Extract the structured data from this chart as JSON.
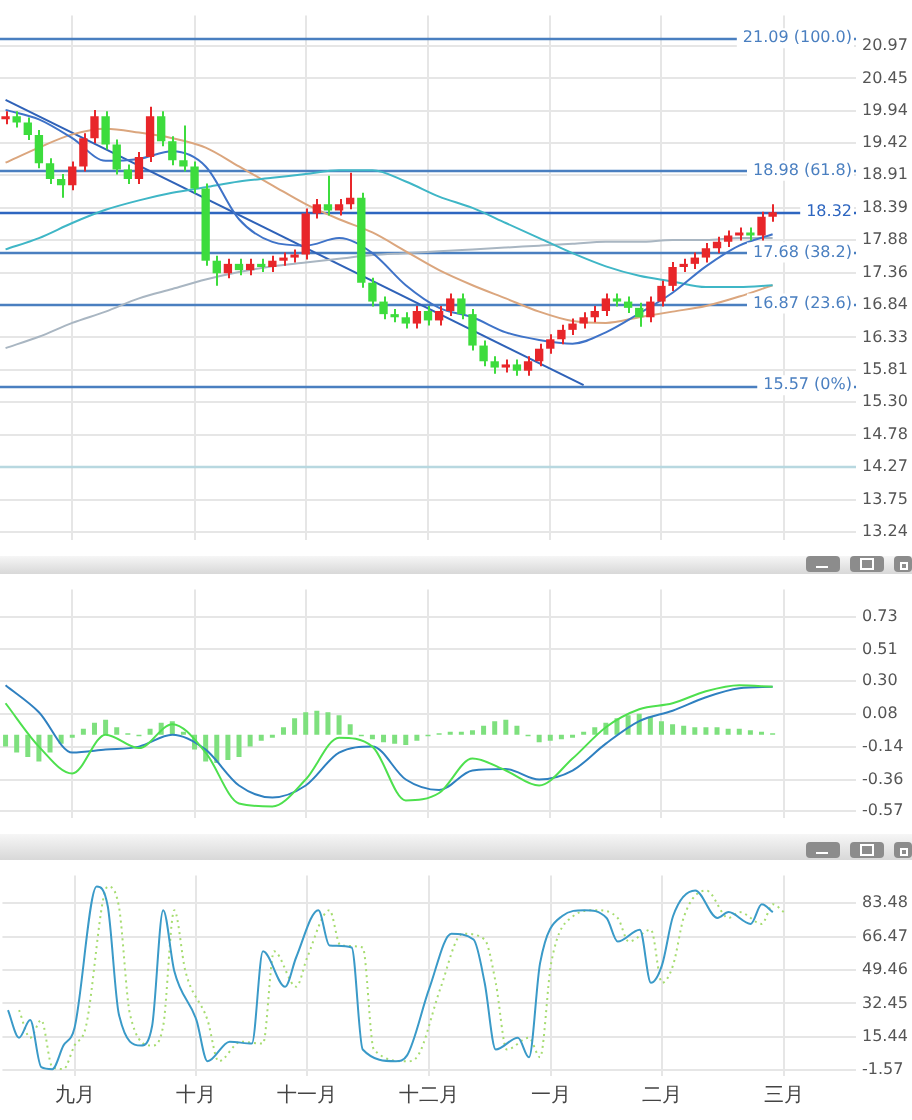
{
  "chart_data": [
    {
      "type": "candlestick",
      "categories": [
        null,
        null,
        null,
        null,
        null,
        null,
        null,
        null,
        null,
        null,
        null,
        null,
        null,
        null,
        null,
        null,
        null,
        null,
        null,
        null,
        null,
        null,
        null,
        null,
        null,
        null,
        null,
        null,
        null,
        null,
        null,
        null,
        null,
        null,
        null,
        null,
        null,
        null,
        null,
        null,
        null,
        null,
        null,
        null,
        null,
        null,
        null,
        null,
        null,
        null,
        null,
        null,
        null,
        null,
        null,
        null,
        null,
        null,
        null,
        null,
        null,
        null,
        null,
        null,
        null,
        null,
        null,
        null,
        null,
        null,
        null,
        null,
        null,
        null,
        null,
        null,
        null
      ],
      "series": [
        {
          "ohlc": [
            [
              19.8,
              19.93,
              19.72,
              19.85
            ],
            [
              19.85,
              19.93,
              19.67,
              19.75
            ],
            [
              19.75,
              19.83,
              19.47,
              19.55
            ],
            [
              19.55,
              19.63,
              19.02,
              19.1
            ],
            [
              19.1,
              19.18,
              18.77,
              18.85
            ],
            [
              18.85,
              18.93,
              18.55,
              18.75
            ],
            [
              18.75,
              19.13,
              18.67,
              19.05
            ],
            [
              19.05,
              19.58,
              18.97,
              19.5
            ],
            [
              19.5,
              19.95,
              19.42,
              19.85
            ],
            [
              19.85,
              19.93,
              19.32,
              19.4
            ],
            [
              19.4,
              19.48,
              18.92,
              19.0
            ],
            [
              19.0,
              19.08,
              18.77,
              18.85
            ],
            [
              18.85,
              19.28,
              18.77,
              19.2
            ],
            [
              19.2,
              20.0,
              19.12,
              19.85
            ],
            [
              19.85,
              19.93,
              19.37,
              19.45
            ],
            [
              19.45,
              19.53,
              19.07,
              19.15
            ],
            [
              19.15,
              19.7,
              18.97,
              19.05
            ],
            [
              19.05,
              19.13,
              18.62,
              18.7
            ],
            [
              18.7,
              18.78,
              17.47,
              17.55
            ],
            [
              17.55,
              17.63,
              17.15,
              17.35
            ],
            [
              17.35,
              17.58,
              17.27,
              17.5
            ],
            [
              17.5,
              17.58,
              17.32,
              17.4
            ],
            [
              17.4,
              17.58,
              17.32,
              17.5
            ],
            [
              17.5,
              17.58,
              17.37,
              17.45
            ],
            [
              17.45,
              17.63,
              17.37,
              17.55
            ],
            [
              17.55,
              17.68,
              17.47,
              17.6
            ],
            [
              17.6,
              17.73,
              17.52,
              17.65
            ],
            [
              17.65,
              18.38,
              17.57,
              18.3
            ],
            [
              18.3,
              18.53,
              18.22,
              18.45
            ],
            [
              18.45,
              18.9,
              18.27,
              18.35
            ],
            [
              18.35,
              18.53,
              18.27,
              18.45
            ],
            [
              18.45,
              18.95,
              18.37,
              18.55
            ],
            [
              18.55,
              18.63,
              17.12,
              17.2
            ],
            [
              17.2,
              17.28,
              16.82,
              16.9
            ],
            [
              16.9,
              16.98,
              16.62,
              16.7
            ],
            [
              16.7,
              16.78,
              16.57,
              16.65
            ],
            [
              16.65,
              16.73,
              16.47,
              16.55
            ],
            [
              16.55,
              16.83,
              16.47,
              16.75
            ],
            [
              16.75,
              16.83,
              16.52,
              16.6
            ],
            [
              16.6,
              16.83,
              16.52,
              16.75
            ],
            [
              16.75,
              17.03,
              16.67,
              16.95
            ],
            [
              16.95,
              17.03,
              16.62,
              16.7
            ],
            [
              16.7,
              16.78,
              16.12,
              16.2
            ],
            [
              16.2,
              16.28,
              15.87,
              15.95
            ],
            [
              15.95,
              16.03,
              15.75,
              15.85
            ],
            [
              15.85,
              15.98,
              15.77,
              15.9
            ],
            [
              15.9,
              15.98,
              15.72,
              15.8
            ],
            [
              15.8,
              16.03,
              15.72,
              15.95
            ],
            [
              15.95,
              16.23,
              15.87,
              16.15
            ],
            [
              16.15,
              16.38,
              16.07,
              16.3
            ],
            [
              16.3,
              16.53,
              16.22,
              16.45
            ],
            [
              16.45,
              16.63,
              16.37,
              16.55
            ],
            [
              16.55,
              16.73,
              16.47,
              16.65
            ],
            [
              16.65,
              16.83,
              16.57,
              16.75
            ],
            [
              16.75,
              17.03,
              16.67,
              16.95
            ],
            [
              16.95,
              17.03,
              16.82,
              16.9
            ],
            [
              16.9,
              16.98,
              16.72,
              16.8
            ],
            [
              16.8,
              16.88,
              16.5,
              16.65
            ],
            [
              16.65,
              16.98,
              16.57,
              16.9
            ],
            [
              16.9,
              17.23,
              16.82,
              17.15
            ],
            [
              17.15,
              17.53,
              17.07,
              17.45
            ],
            [
              17.45,
              17.58,
              17.37,
              17.5
            ],
            [
              17.5,
              17.68,
              17.42,
              17.6
            ],
            [
              17.6,
              17.83,
              17.52,
              17.75
            ],
            [
              17.75,
              17.93,
              17.67,
              17.85
            ],
            [
              17.85,
              18.03,
              17.77,
              17.95
            ],
            [
              17.95,
              18.08,
              17.87,
              18.0
            ],
            [
              18.0,
              18.08,
              17.87,
              17.95
            ],
            [
              17.95,
              18.33,
              17.87,
              18.25
            ],
            [
              18.25,
              18.45,
              18.17,
              18.32
            ],
            null,
            null,
            null,
            null,
            null,
            null,
            null
          ],
          "colors": [
            "#e8262a",
            "#3ddc3d",
            "#3ddc3d",
            "#3ddc3d",
            "#3ddc3d",
            "#3ddc3d",
            "#e8262a",
            "#e8262a",
            "#e8262a",
            "#3ddc3d",
            "#3ddc3d",
            "#3ddc3d",
            "#e8262a",
            "#e8262a",
            "#3ddc3d",
            "#3ddc3d",
            "#3ddc3d",
            "#3ddc3d",
            "#3ddc3d",
            "#3ddc3d",
            "#e8262a",
            "#3ddc3d",
            "#e8262a",
            "#3ddc3d",
            "#e8262a",
            "#e8262a",
            "#e8262a",
            "#e8262a",
            "#e8262a",
            "#3ddc3d",
            "#e8262a",
            "#e8262a",
            "#3ddc3d",
            "#3ddc3d",
            "#3ddc3d",
            "#3ddc3d",
            "#3ddc3d",
            "#e8262a",
            "#3ddc3d",
            "#e8262a",
            "#e8262a",
            "#3ddc3d",
            "#3ddc3d",
            "#3ddc3d",
            "#3ddc3d",
            "#e8262a",
            "#3ddc3d",
            "#e8262a",
            "#e8262a",
            "#e8262a",
            "#e8262a",
            "#e8262a",
            "#e8262a",
            "#e8262a",
            "#e8262a",
            "#3ddc3d",
            "#3ddc3d",
            "#3ddc3d",
            "#e8262a",
            "#e8262a",
            "#e8262a",
            "#e8262a",
            "#e8262a",
            "#e8262a",
            "#e8262a",
            "#e8262a",
            "#e8262a",
            "#3ddc3d",
            "#e8262a",
            "#e8262a",
            null,
            null,
            null,
            null,
            null,
            null,
            null
          ]
        },
        {
          "type": "line",
          "color": "#3f73c8",
          "values": [
            19.95,
            null,
            null,
            19.8,
            null,
            null,
            19.5,
            null,
            null,
            19.14,
            null,
            null,
            19.17,
            null,
            null,
            19.29,
            null,
            null,
            19.05,
            null,
            null,
            18.21,
            null,
            null,
            17.85,
            null,
            null,
            17.79,
            null,
            null,
            17.91,
            null,
            null,
            17.67,
            null,
            null,
            17.16,
            null,
            null,
            16.8,
            null,
            null,
            16.65,
            null,
            null,
            16.41,
            null,
            null,
            16.29,
            null,
            null,
            16.23,
            null,
            null,
            16.41,
            null,
            null,
            16.71,
            null,
            null,
            17.04,
            null,
            null,
            17.46,
            null,
            null,
            17.79,
            null,
            null,
            17.97,
            null,
            null,
            null,
            null,
            null,
            null,
            null
          ]
        },
        {
          "type": "line",
          "color": "#3fb6c6",
          "values": [
            17.73,
            null,
            null,
            17.91,
            null,
            null,
            18.15,
            null,
            null,
            18.36,
            null,
            null,
            18.51,
            null,
            null,
            18.63,
            null,
            null,
            18.72,
            null,
            null,
            18.81,
            null,
            null,
            18.87,
            null,
            null,
            18.93,
            null,
            null,
            18.99,
            null,
            null,
            18.99,
            null,
            null,
            18.81,
            null,
            null,
            18.57,
            null,
            null,
            18.39,
            null,
            null,
            18.15,
            null,
            null,
            17.91,
            null,
            null,
            17.67,
            null,
            null,
            17.46,
            null,
            null,
            17.31,
            null,
            null,
            17.22,
            null,
            null,
            17.13,
            null,
            null,
            17.13,
            null,
            null,
            17.16,
            null,
            null,
            null,
            null,
            null,
            null,
            null
          ]
        },
        {
          "type": "line",
          "color": "#dba67e",
          "values": [
            19.11,
            null,
            null,
            19.35,
            null,
            null,
            19.56,
            null,
            null,
            19.65,
            null,
            null,
            19.59,
            null,
            null,
            19.5,
            null,
            null,
            19.35,
            null,
            null,
            19.05,
            null,
            null,
            18.75,
            null,
            null,
            18.45,
            null,
            null,
            18.21,
            null,
            null,
            18.0,
            null,
            null,
            17.7,
            null,
            null,
            17.4,
            null,
            null,
            17.16,
            null,
            null,
            16.95,
            null,
            null,
            16.74,
            null,
            null,
            16.59,
            null,
            null,
            16.56,
            null,
            null,
            16.65,
            null,
            null,
            16.74,
            null,
            null,
            16.83,
            null,
            null,
            16.98,
            null,
            null,
            17.16,
            null,
            null,
            null,
            null,
            null,
            null,
            null
          ]
        },
        {
          "type": "line",
          "color": "#a9b6c2",
          "values": [
            16.16,
            null,
            null,
            16.34,
            null,
            null,
            16.56,
            null,
            null,
            16.74,
            null,
            null,
            16.95,
            null,
            null,
            17.1,
            null,
            null,
            17.25,
            null,
            null,
            17.37,
            null,
            null,
            17.46,
            null,
            null,
            17.52,
            null,
            null,
            17.58,
            null,
            null,
            17.64,
            null,
            null,
            17.67,
            null,
            null,
            17.7,
            null,
            null,
            17.73,
            null,
            null,
            17.76,
            null,
            null,
            17.79,
            null,
            null,
            17.82,
            null,
            null,
            17.85,
            null,
            null,
            17.85,
            null,
            null,
            17.88,
            null,
            null,
            17.88,
            null,
            null,
            17.91,
            null,
            null,
            17.91,
            null,
            null,
            null,
            null,
            null,
            null,
            null
          ]
        },
        {
          "type": "line",
          "color": "#2f62b8",
          "values": [
            20.11,
            null,
            null,
            null,
            null,
            null,
            null,
            null,
            null,
            null,
            null,
            null,
            null,
            null,
            null,
            null,
            null,
            null,
            null,
            null,
            null,
            null,
            null,
            null,
            null,
            null,
            null,
            null,
            null,
            null,
            null,
            null,
            null,
            null,
            null,
            null,
            null,
            null,
            null,
            null,
            null,
            null,
            null,
            null,
            null,
            null,
            null,
            null,
            null,
            null,
            null,
            null,
            15.57,
            null,
            null,
            null,
            null,
            null,
            null,
            null,
            null,
            null,
            null,
            null,
            null,
            null,
            null,
            null,
            null,
            null,
            null,
            null,
            null,
            null,
            null,
            null,
            null
          ]
        }
      ],
      "ylim": [
        13.1,
        21.45
      ],
      "yticks": [
        20.97,
        20.45,
        19.94,
        19.42,
        18.91,
        18.39,
        17.88,
        17.36,
        16.84,
        16.33,
        15.81,
        {
          "value": 15.3,
          "label": "15.30"
        },
        14.78,
        14.27,
        13.75,
        13.24
      ],
      "ref_lines": [
        {
          "axis": "y",
          "value": 21.09,
          "label": "21.09 (100.0)",
          "color": "#4a7fc0"
        },
        {
          "axis": "y",
          "value": 18.98,
          "label": "18.98 (61.8)",
          "color": "#4a7fc0"
        },
        {
          "axis": "y",
          "value": 18.32,
          "label": "18.32",
          "color": "#2e66c0"
        },
        {
          "axis": "y",
          "value": 17.68,
          "label": "17.68 (38.2)",
          "color": "#4a7fc0"
        },
        {
          "axis": "y",
          "value": 16.87,
          "label": "16.87 (23.6)",
          "color": "#4a7fc0"
        },
        {
          "axis": "y",
          "value": 15.57,
          "label": "15.57 (0%)",
          "color": "#4a7fc0"
        },
        {
          "axis": "y",
          "value": 14.29,
          "color": "#b8d8e0"
        }
      ],
      "grid": true,
      "tick_labels": "y"
    },
    {
      "type": "bar",
      "categories": [
        null,
        null,
        null,
        null,
        null,
        null,
        null,
        null,
        null,
        null,
        null,
        null,
        null,
        null,
        null,
        null,
        null,
        null,
        null,
        null,
        null,
        null,
        null,
        null,
        null,
        null,
        null,
        null,
        null,
        null,
        null,
        null,
        null,
        null,
        null,
        null,
        null,
        null,
        null,
        null,
        null,
        null,
        null,
        null,
        null,
        null,
        null,
        null,
        null,
        null,
        null,
        null,
        null,
        null,
        null,
        null,
        null,
        null,
        null,
        null,
        null,
        null,
        null,
        null,
        null,
        null,
        null,
        null,
        null,
        null,
        null,
        null,
        null,
        null,
        null,
        null,
        null
      ],
      "series": [
        {
          "color": "#7ee07e",
          "values": [
            -0.08,
            -0.12,
            -0.15,
            -0.18,
            -0.12,
            -0.06,
            -0.02,
            0.04,
            0.08,
            0.1,
            0.05,
            0.01,
            -0.01,
            0.04,
            0.08,
            0.09,
            0.02,
            -0.1,
            -0.18,
            -0.19,
            -0.17,
            -0.15,
            -0.08,
            -0.04,
            -0.02,
            0.05,
            0.11,
            0.15,
            0.16,
            0.15,
            0.13,
            0.07,
            -0.01,
            -0.03,
            -0.05,
            -0.06,
            -0.07,
            -0.04,
            -0.01,
            0.01,
            0.02,
            0.02,
            0.03,
            0.06,
            0.09,
            0.1,
            0.06,
            -0.01,
            -0.05,
            -0.04,
            -0.03,
            -0.02,
            0.02,
            0.05,
            0.08,
            0.11,
            0.13,
            0.14,
            0.12,
            0.09,
            0.07,
            0.06,
            0.05,
            0.05,
            0.05,
            0.04,
            0.04,
            0.03,
            0.02,
            0.01,
            null,
            null,
            null,
            null,
            null,
            null,
            null
          ],
          "base": [
            -0.06,
            -0.06,
            -0.06,
            -0.06,
            -0.06,
            -0.06,
            -0.06,
            -0.06,
            -0.06,
            -0.06,
            -0.06,
            -0.06,
            -0.06,
            -0.06,
            -0.06,
            -0.06,
            -0.06,
            -0.06,
            -0.06,
            -0.06,
            -0.06,
            -0.06,
            -0.06,
            -0.06,
            -0.06,
            -0.06,
            -0.06,
            -0.06,
            -0.06,
            -0.06,
            -0.06,
            -0.06,
            -0.06,
            -0.06,
            -0.06,
            -0.06,
            -0.06,
            -0.06,
            -0.06,
            -0.06,
            -0.06,
            -0.06,
            -0.06,
            -0.06,
            -0.06,
            -0.06,
            -0.06,
            -0.06,
            -0.06,
            -0.06,
            -0.06,
            -0.06,
            -0.06,
            -0.06,
            -0.06,
            -0.06,
            -0.06,
            -0.06,
            -0.06,
            -0.06,
            -0.06,
            -0.06,
            -0.06,
            -0.06,
            -0.06,
            -0.06,
            -0.06,
            -0.06,
            -0.06,
            -0.06,
            null,
            null,
            null,
            null,
            null,
            null,
            null
          ]
        },
        {
          "type": "line",
          "color": "#4ee04e",
          "values": [
            0.15,
            null,
            null,
            -0.14,
            null,
            null,
            -0.32,
            null,
            null,
            -0.06,
            null,
            null,
            -0.15,
            null,
            null,
            0.01,
            null,
            null,
            -0.18,
            null,
            null,
            -0.52,
            null,
            null,
            -0.54,
            null,
            null,
            -0.36,
            null,
            null,
            -0.08,
            null,
            null,
            -0.14,
            null,
            null,
            -0.5,
            null,
            null,
            -0.45,
            null,
            null,
            -0.22,
            null,
            null,
            -0.3,
            null,
            null,
            -0.4,
            null,
            null,
            -0.22,
            null,
            null,
            -0.01,
            null,
            null,
            0.11,
            null,
            null,
            0.15,
            null,
            null,
            0.23,
            null,
            null,
            0.27,
            null,
            null,
            0.26,
            null,
            null,
            null,
            null,
            null,
            null,
            null
          ]
        },
        {
          "type": "line",
          "color": "#2f80c0",
          "values": [
            0.27,
            null,
            null,
            0.09,
            null,
            null,
            -0.18,
            null,
            null,
            -0.16,
            null,
            null,
            -0.14,
            null,
            null,
            -0.06,
            null,
            null,
            -0.16,
            null,
            null,
            -0.4,
            null,
            null,
            -0.48,
            null,
            null,
            -0.4,
            null,
            null,
            -0.18,
            null,
            null,
            -0.14,
            null,
            null,
            -0.36,
            null,
            null,
            -0.43,
            null,
            null,
            -0.3,
            null,
            null,
            -0.29,
            null,
            null,
            -0.36,
            null,
            null,
            -0.3,
            null,
            null,
            -0.12,
            null,
            null,
            0.03,
            null,
            null,
            0.1,
            null,
            null,
            0.19,
            null,
            null,
            0.25,
            null,
            null,
            0.26,
            null,
            null,
            null,
            null,
            null,
            null,
            null
          ]
        }
      ],
      "ylim": [
        -0.62,
        0.91
      ],
      "yticks": [
        0.73,
        0.51,
        {
          "value": 0.3,
          "label": "0.30"
        },
        0.08,
        -0.14,
        -0.36,
        -0.57
      ],
      "grid": true,
      "tick_labels": "y"
    },
    {
      "type": "line",
      "categories": [
        null,
        null,
        null,
        null,
        null,
        null,
        "九月",
        null,
        null,
        null,
        null,
        null,
        null,
        null,
        null,
        null,
        null,
        "十月",
        null,
        null,
        null,
        null,
        null,
        null,
        null,
        null,
        null,
        "十一月",
        null,
        null,
        null,
        null,
        null,
        null,
        null,
        null,
        null,
        null,
        "十二月",
        null,
        null,
        null,
        null,
        null,
        null,
        null,
        null,
        null,
        null,
        "一月",
        null,
        null,
        null,
        null,
        null,
        null,
        null,
        null,
        null,
        "二月",
        null,
        null,
        null,
        null,
        null,
        null,
        null,
        null,
        null,
        null,
        "三月",
        null,
        null,
        null,
        null,
        null,
        null
      ],
      "series": [
        {
          "color": "#3a9ac8",
          "values": [
            29,
            15,
            24,
            0,
            -1,
            11,
            20,
            null,
            92,
            82,
            27,
            null,
            11,
            21,
            80,
            49,
            null,
            24,
            3,
            null,
            13,
            null,
            12,
            59,
            null,
            41,
            56,
            null,
            80,
            62,
            null,
            61,
            9,
            null,
            null,
            3,
            6,
            null,
            40,
            null,
            68,
            null,
            65,
            43,
            9,
            null,
            15,
            5,
            53,
            null,
            77,
            null,
            80,
            null,
            76,
            64,
            null,
            70,
            43,
            52,
            77,
            null,
            90,
            null,
            76,
            79,
            null,
            73,
            83,
            79,
            null,
            null,
            null,
            null,
            null,
            null,
            null
          ]
        },
        {
          "color": "#a6dc70",
          "line_style": "dotted",
          "values": [
            null,
            29,
            15,
            24,
            0,
            -1,
            11,
            20,
            null,
            92,
            82,
            27,
            null,
            11,
            21,
            80,
            49,
            null,
            24,
            3,
            null,
            13,
            null,
            12,
            59,
            null,
            41,
            56,
            null,
            80,
            62,
            null,
            61,
            9,
            null,
            null,
            3,
            6,
            null,
            40,
            null,
            68,
            null,
            65,
            43,
            9,
            null,
            15,
            5,
            53,
            null,
            77,
            null,
            80,
            null,
            76,
            64,
            null,
            70,
            43,
            52,
            77,
            null,
            90,
            null,
            76,
            79,
            null,
            73,
            83,
            79,
            null,
            null,
            null,
            null,
            null,
            null
          ]
        }
      ],
      "ylim": [
        -4.5,
        97.6
      ],
      "yticks": [
        83.48,
        66.47,
        49.46,
        32.45,
        15.44,
        -1.57
      ],
      "grid": true
    }
  ]
}
